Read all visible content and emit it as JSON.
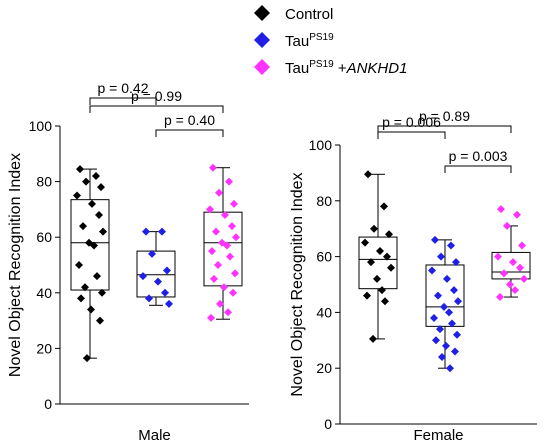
{
  "legend": [
    {
      "base": "Control",
      "sup": "",
      "ital": "",
      "color": "#000000"
    },
    {
      "base": "Tau",
      "sup": "PS19",
      "ital": "",
      "color": "#1f1fe6"
    },
    {
      "base": "Tau",
      "sup": "PS19",
      "ital": "ANKHD1",
      "plus": " +",
      "color": "#ff33ff"
    }
  ],
  "chart_data": [
    {
      "type": "box",
      "panel": "male",
      "xlabel": "Male",
      "ylabel": "Novel Object Recognition Index",
      "ylim": [
        0,
        100
      ],
      "yticks": [
        0,
        20,
        40,
        60,
        80,
        100
      ],
      "groups": [
        {
          "name": "Control",
          "color": "#000000",
          "box": {
            "min": 16.5,
            "q1": 41,
            "median": 58,
            "q3": 73.5,
            "max": 84.5
          },
          "points": [
            84.5,
            82,
            80,
            78,
            75,
            72,
            68,
            64,
            62,
            58,
            57,
            50,
            46,
            42,
            40,
            38,
            34,
            30,
            16.5
          ]
        },
        {
          "name": "TauPS19",
          "color": "#1f1fe6",
          "box": {
            "min": 35.5,
            "q1": 38.5,
            "median": 46.5,
            "q3": 55,
            "max": 62
          },
          "points": [
            62,
            62,
            54,
            48,
            46,
            44,
            40,
            38,
            36
          ]
        },
        {
          "name": "TauPS19 +ANKHD1",
          "color": "#ff33ff",
          "box": {
            "min": 30.5,
            "q1": 42.5,
            "median": 58,
            "q3": 69,
            "max": 85
          },
          "points": [
            85,
            80,
            76,
            72,
            70,
            68,
            64,
            62,
            60,
            58,
            57,
            55,
            53,
            50,
            47,
            45,
            42,
            40,
            36,
            33,
            31
          ]
        }
      ],
      "comparisons": [
        {
          "from": 0,
          "to": 1,
          "label": "p = 0.42"
        },
        {
          "from": 1,
          "to": 2,
          "label": "p = 0.40"
        },
        {
          "from": 0,
          "to": 2,
          "label": "p = 0.99"
        }
      ]
    },
    {
      "type": "box",
      "panel": "female",
      "xlabel": "Female",
      "ylabel": "Novel Object Recognition Index",
      "ylim": [
        0,
        100
      ],
      "yticks": [
        0,
        20,
        40,
        60,
        80,
        100
      ],
      "groups": [
        {
          "name": "Control",
          "color": "#000000",
          "box": {
            "min": 30.5,
            "q1": 48.5,
            "median": 59,
            "q3": 67,
            "max": 89.5
          },
          "points": [
            89.5,
            78,
            70,
            68,
            65,
            62,
            60,
            58,
            56,
            52,
            48,
            46,
            44,
            30.5
          ]
        },
        {
          "name": "TauPS19",
          "color": "#1f1fe6",
          "box": {
            "min": 20,
            "q1": 35,
            "median": 42,
            "q3": 57,
            "max": 66
          },
          "points": [
            66,
            64,
            60,
            58,
            55,
            52,
            48,
            46,
            44,
            42,
            40,
            38,
            36,
            34,
            32,
            30,
            28,
            26,
            24,
            20
          ]
        },
        {
          "name": "TauPS19 +ANKHD1",
          "color": "#ff33ff",
          "box": {
            "min": 45.5,
            "q1": 52,
            "median": 54.5,
            "q3": 61.5,
            "max": 71
          },
          "points": [
            77,
            75,
            71,
            64,
            60,
            58,
            56,
            54,
            52,
            50,
            48,
            45.5
          ]
        }
      ],
      "comparisons": [
        {
          "from": 0,
          "to": 1,
          "label": "p = 0.006"
        },
        {
          "from": 1,
          "to": 2,
          "label": "p = 0.003"
        },
        {
          "from": 0,
          "to": 2,
          "label": "p = 0.89"
        }
      ]
    }
  ]
}
